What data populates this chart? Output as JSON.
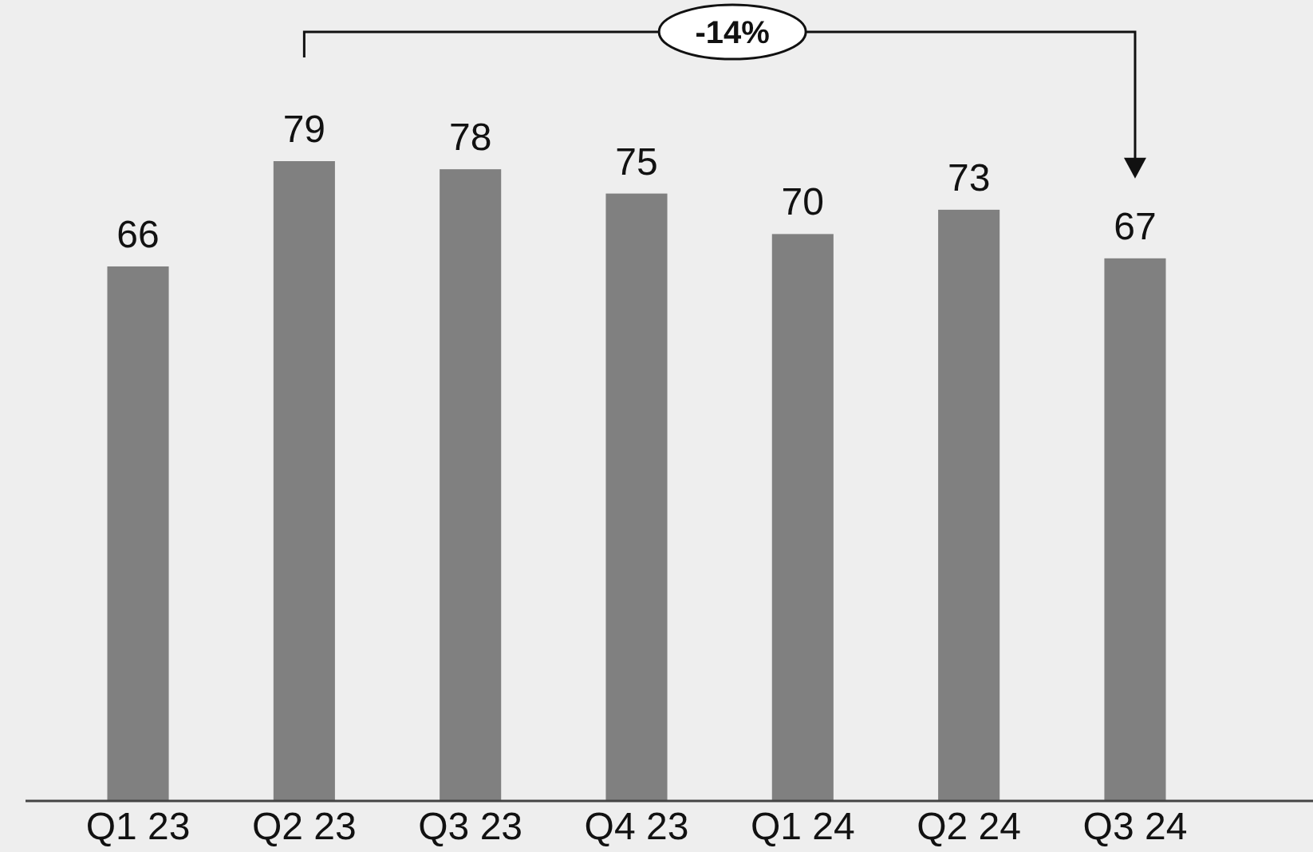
{
  "chart_data": {
    "type": "bar",
    "categories": [
      "Q1 23",
      "Q2 23",
      "Q3 23",
      "Q4 23",
      "Q1 24",
      "Q2 24",
      "Q3 24"
    ],
    "values": [
      66,
      79,
      78,
      75,
      70,
      73,
      67
    ],
    "color": "#808080",
    "data_labels": true,
    "annotations": [
      "-14%"
    ]
  }
}
